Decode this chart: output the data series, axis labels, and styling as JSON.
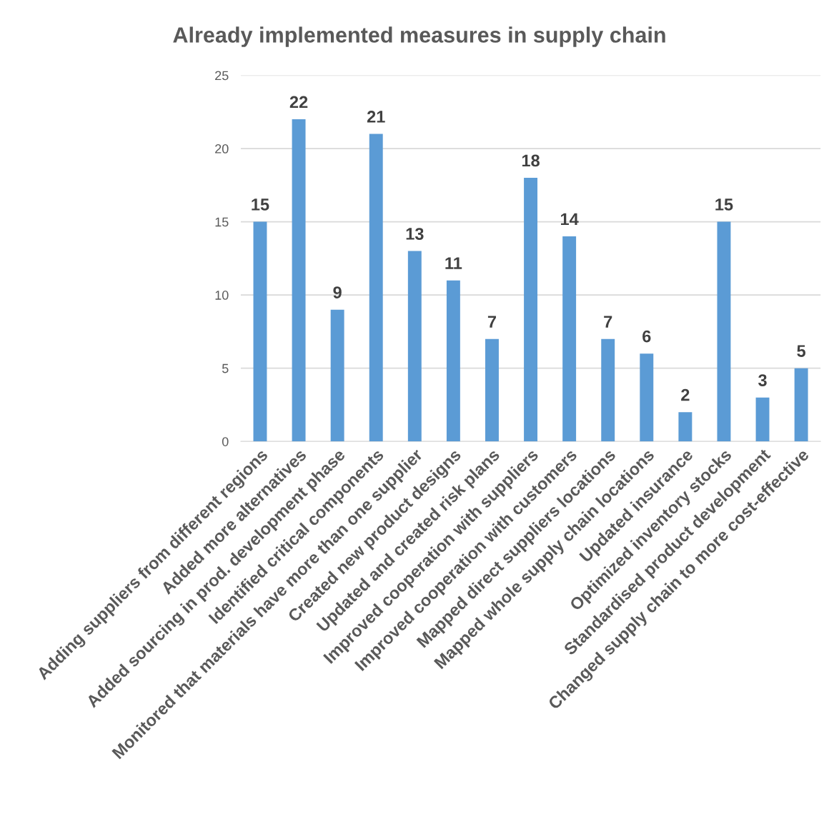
{
  "chart_data": {
    "type": "bar",
    "title": "Already implemented measures in supply chain",
    "categories": [
      "Adding suppliers from different regions",
      "Added more alternatives",
      "Added sourcing in prod. development phase",
      "Identified critical components",
      "Monitored that materials have more than one supplier",
      "Created new product designs",
      "Updated and created risk plans",
      "Improved cooperation with suppliers",
      "Improved cooperation with customers",
      "Mapped direct suppliers locations",
      "Mapped whole supply chain locations",
      "Updated insurance",
      "Optimized inventory stocks",
      "Standardised product development",
      "Changed supply chain to more cost-effective"
    ],
    "values": [
      15,
      22,
      9,
      21,
      13,
      11,
      7,
      18,
      14,
      7,
      6,
      2,
      15,
      3,
      5
    ],
    "color": "#5b9bd5",
    "ylim": [
      0,
      25
    ],
    "yticks": [
      0,
      5,
      10,
      15,
      20,
      25
    ],
    "grid": "y",
    "data_labels": true
  }
}
